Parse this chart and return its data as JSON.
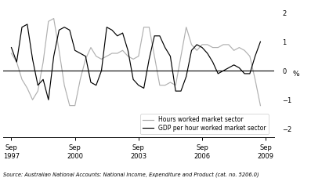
{
  "ylabel": "%",
  "ylim": [
    -2.3,
    2.3
  ],
  "yticks": [
    -2,
    -1,
    0,
    1,
    2
  ],
  "source_text": "Source: Australian National Accounts: National Income, Expenditure and Product (cat. no. 5206.0)",
  "legend1": "GDP per hour worked market sector",
  "legend2": "Hours worked market sector",
  "color_gdp": "#000000",
  "color_hours": "#b0b0b0",
  "xtick_labels": [
    "Sep\n1997",
    "Sep\n2000",
    "Sep\n2003",
    "Sep\n2006",
    "Sep\n2009"
  ],
  "gdp_data": [
    0.8,
    0.3,
    1.5,
    1.6,
    0.4,
    -0.5,
    -0.3,
    -1.0,
    0.5,
    1.4,
    1.5,
    1.4,
    0.7,
    0.6,
    0.5,
    -0.4,
    -0.5,
    0.0,
    1.5,
    1.4,
    1.2,
    1.3,
    0.7,
    -0.3,
    -0.5,
    -0.6,
    0.4,
    1.2,
    1.2,
    0.8,
    0.5,
    -0.7,
    -0.7,
    -0.2,
    0.7,
    0.9,
    0.8,
    0.6,
    0.3,
    -0.1,
    0.0,
    0.1,
    0.2,
    0.1,
    -0.1,
    -0.1,
    0.5,
    1.0
  ],
  "hours_data": [
    0.6,
    0.3,
    -0.3,
    -0.6,
    -1.0,
    -0.7,
    0.3,
    1.7,
    1.8,
    0.7,
    -0.5,
    -1.2,
    -1.2,
    -0.3,
    0.4,
    0.8,
    0.5,
    0.4,
    0.5,
    0.6,
    0.6,
    0.7,
    0.5,
    0.4,
    0.5,
    1.5,
    1.5,
    0.5,
    -0.5,
    -0.5,
    -0.4,
    -0.5,
    0.5,
    1.5,
    0.9,
    0.7,
    0.9,
    0.9,
    0.8,
    0.8,
    0.9,
    0.9,
    0.7,
    0.8,
    0.7,
    0.5,
    -0.3,
    -1.2
  ],
  "sep_ticks": [
    1997.583,
    2000.583,
    2003.583,
    2006.583,
    2009.583
  ],
  "xlim": [
    1997.2,
    2010.0
  ]
}
